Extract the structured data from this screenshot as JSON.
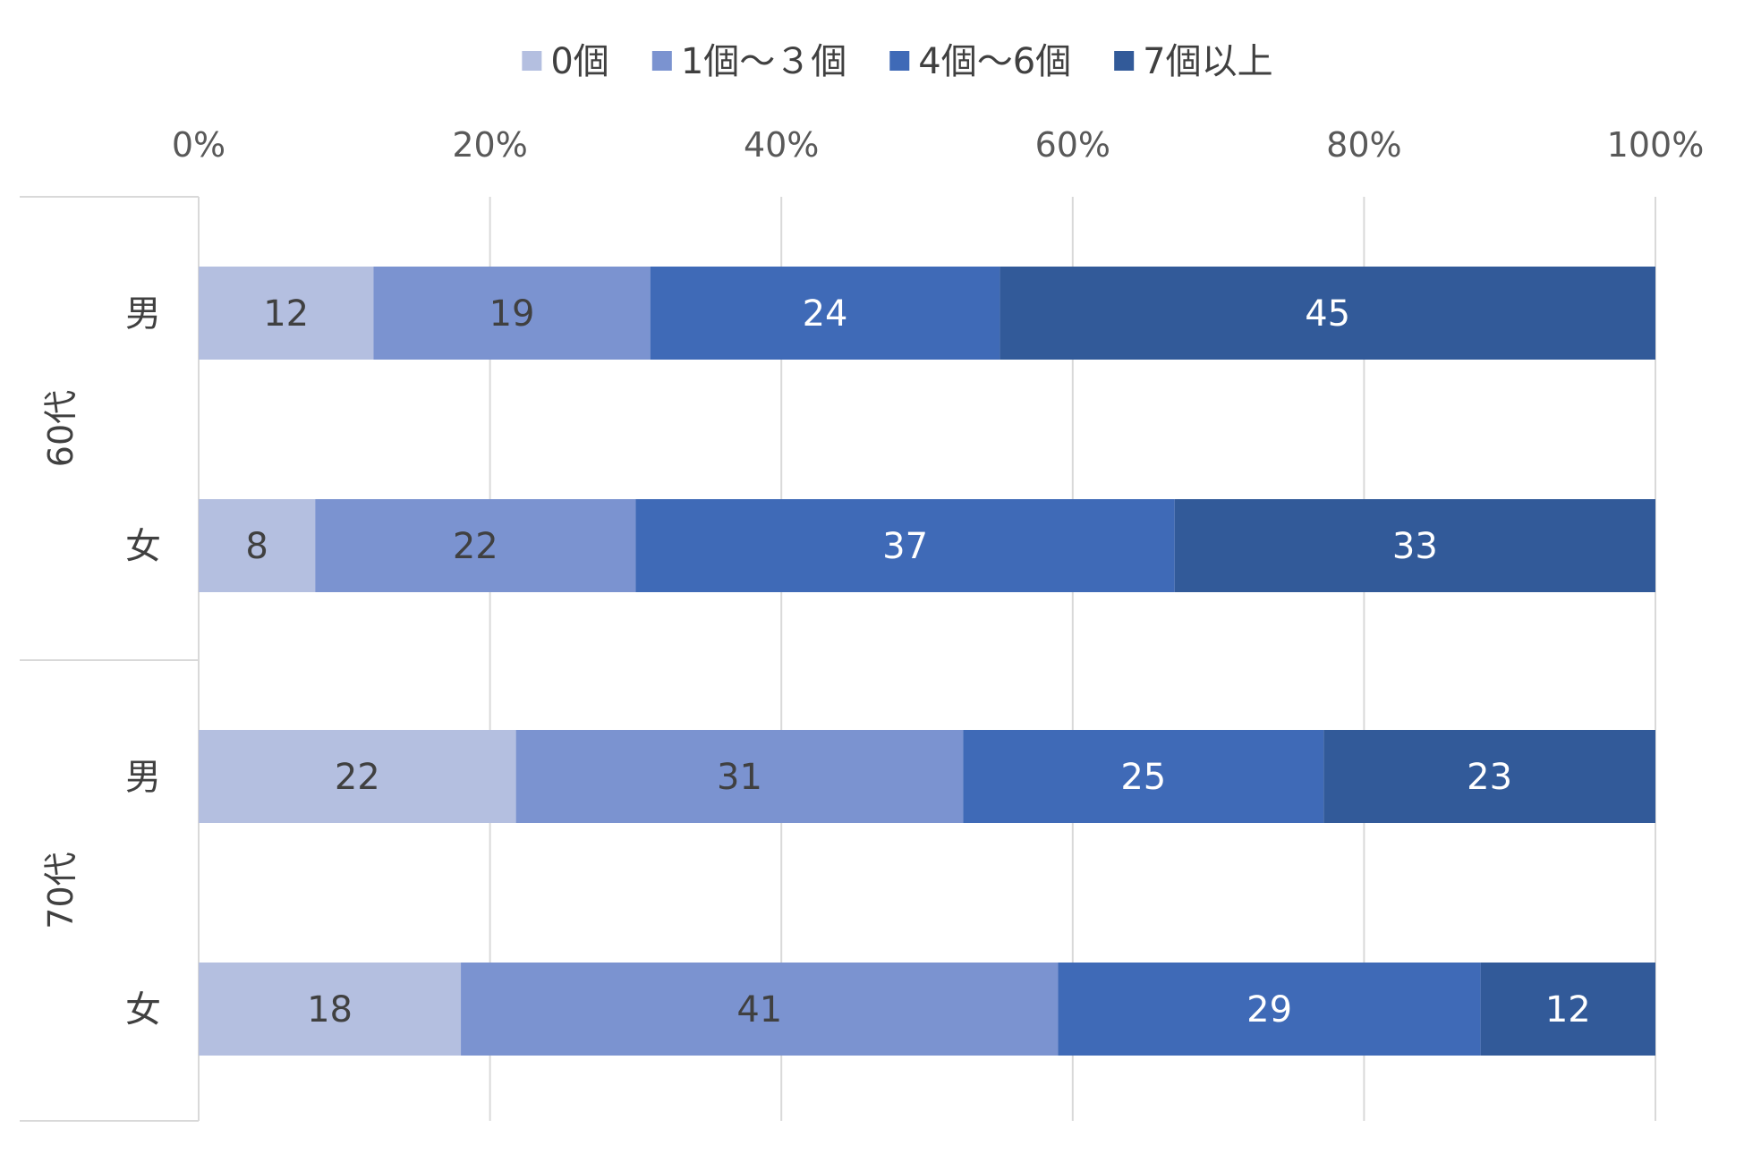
{
  "chart_data": {
    "type": "bar",
    "orientation": "horizontal",
    "stacking": "percent",
    "legend_position": "top",
    "grid": true,
    "xlim": [
      0,
      100
    ],
    "x_ticks": [
      "0%",
      "20%",
      "40%",
      "60%",
      "80%",
      "100%"
    ],
    "groups": [
      {
        "label": "60代",
        "categories": [
          "男",
          "女"
        ]
      },
      {
        "label": "70代",
        "categories": [
          "男",
          "女"
        ]
      }
    ],
    "series": [
      {
        "name": "0個",
        "color": "#B4BFE0",
        "label_color": "#404040",
        "values": [
          12,
          8,
          22,
          18
        ]
      },
      {
        "name": "1個～３個",
        "color": "#7B93D0",
        "label_color": "#404040",
        "values": [
          19,
          22,
          31,
          41
        ]
      },
      {
        "name": "4個～6個",
        "color": "#3F6AB7",
        "label_color": "#ffffff",
        "values": [
          24,
          37,
          25,
          29
        ]
      },
      {
        "name": "7個以上",
        "color": "#325A99",
        "label_color": "#ffffff",
        "values": [
          45,
          33,
          23,
          12
        ]
      }
    ]
  }
}
